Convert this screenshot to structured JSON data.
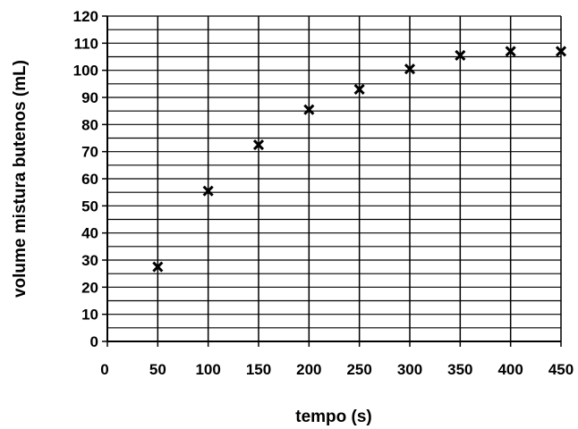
{
  "chart_data": {
    "type": "scatter",
    "title": "",
    "xlabel": "tempo (s)",
    "ylabel": "volume mistura butenos (mL)",
    "xlim": [
      0,
      450
    ],
    "ylim": [
      0,
      120
    ],
    "xticks": [
      0,
      50,
      100,
      150,
      200,
      250,
      300,
      350,
      400,
      450
    ],
    "yticks": [
      0,
      10,
      20,
      30,
      40,
      50,
      60,
      70,
      80,
      90,
      100,
      110,
      120
    ],
    "grid": true,
    "legend": "none",
    "marker": "x",
    "series": [
      {
        "x": [
          50,
          100,
          150,
          200,
          250,
          300,
          350,
          400,
          450
        ],
        "y": [
          27.5,
          55.5,
          72.5,
          85.5,
          93,
          100.5,
          105.5,
          107,
          107
        ]
      }
    ]
  }
}
